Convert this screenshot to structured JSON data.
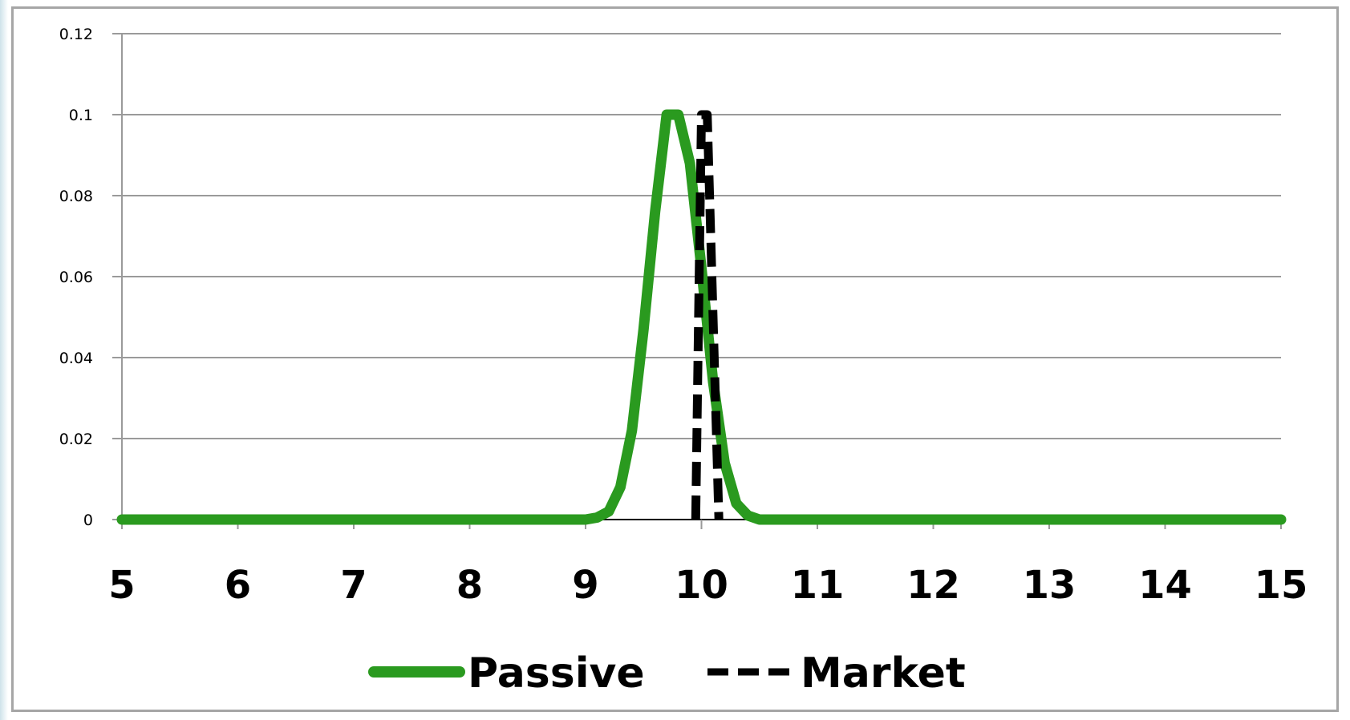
{
  "chart_data": {
    "type": "line",
    "title": "",
    "xlabel": "",
    "ylabel": "",
    "xlim": [
      5,
      15
    ],
    "ylim": [
      0,
      0.12
    ],
    "x_ticks": [
      "5",
      "6",
      "7",
      "8",
      "9",
      "10",
      "11",
      "12",
      "13",
      "14",
      "15"
    ],
    "y_ticks": [
      "0",
      "0.02",
      "0.04",
      "0.06",
      "0.08",
      "0.1",
      "0.12"
    ],
    "grid": "horizontal",
    "legend_position": "bottom",
    "series": [
      {
        "name": "Passive",
        "color": "#2a9a1f",
        "style": "solid",
        "x": [
          5,
          6,
          7,
          8,
          9,
          9.1,
          9.2,
          9.3,
          9.4,
          9.5,
          9.6,
          9.7,
          9.8,
          9.9,
          10.0,
          10.1,
          10.2,
          10.3,
          10.4,
          10.5,
          10.6,
          11,
          12,
          13,
          14,
          15
        ],
        "y": [
          0,
          0,
          0,
          0,
          0,
          0.0005,
          0.002,
          0.008,
          0.022,
          0.047,
          0.076,
          0.1,
          0.1,
          0.088,
          0.062,
          0.034,
          0.014,
          0.004,
          0.001,
          0,
          0,
          0,
          0,
          0,
          0,
          0
        ]
      },
      {
        "name": "Market",
        "color": "#000000",
        "style": "dashed",
        "x": [
          9.95,
          10.0,
          10.05,
          10.15
        ],
        "y": [
          0,
          0.1,
          0.1,
          0
        ]
      }
    ]
  }
}
